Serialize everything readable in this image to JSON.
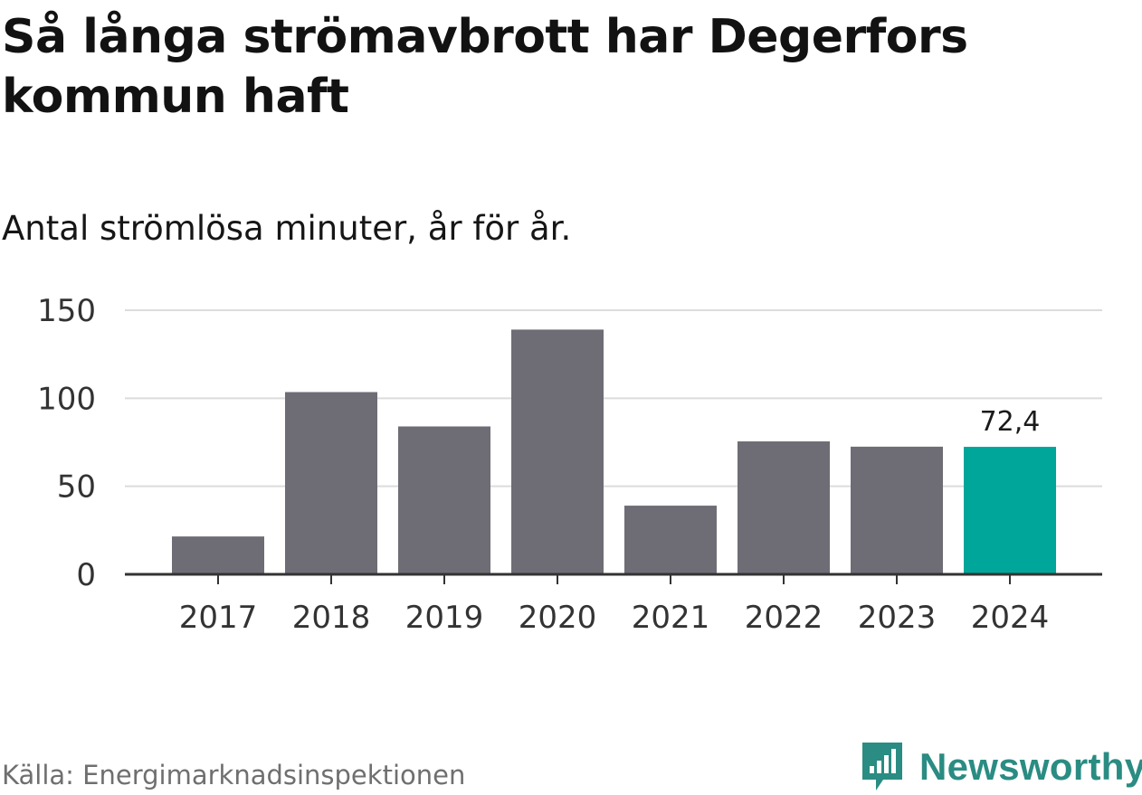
{
  "title": "Så långa strömavbrott har Degerfors kommun haft",
  "subtitle": "Antal strömlösa minuter, år för år.",
  "source": "Källa: Energimarknadsinspektionen",
  "brand": {
    "name": "Newsworthy",
    "color": "#2a8c82",
    "icon": "newsworthy-logo-icon"
  },
  "colors": {
    "bar": "#6e6d75",
    "highlight": "#00a69a",
    "grid": "#dcdcdc",
    "axis": "#333333"
  },
  "chart_data": {
    "type": "bar",
    "title": "Så långa strömavbrott har Degerfors kommun haft",
    "subtitle": "Antal strömlösa minuter, år för år.",
    "xlabel": "",
    "ylabel": "",
    "categories": [
      "2017",
      "2018",
      "2019",
      "2020",
      "2021",
      "2022",
      "2023",
      "2024"
    ],
    "values": [
      21.5,
      103.5,
      84,
      139,
      39,
      75.5,
      72.5,
      72.4
    ],
    "ylim": [
      0,
      150
    ],
    "yticks": [
      0,
      50,
      100,
      150
    ],
    "grid": true,
    "highlight_index": 7,
    "data_labels": [
      {
        "index": 7,
        "text": "72,4"
      }
    ]
  }
}
